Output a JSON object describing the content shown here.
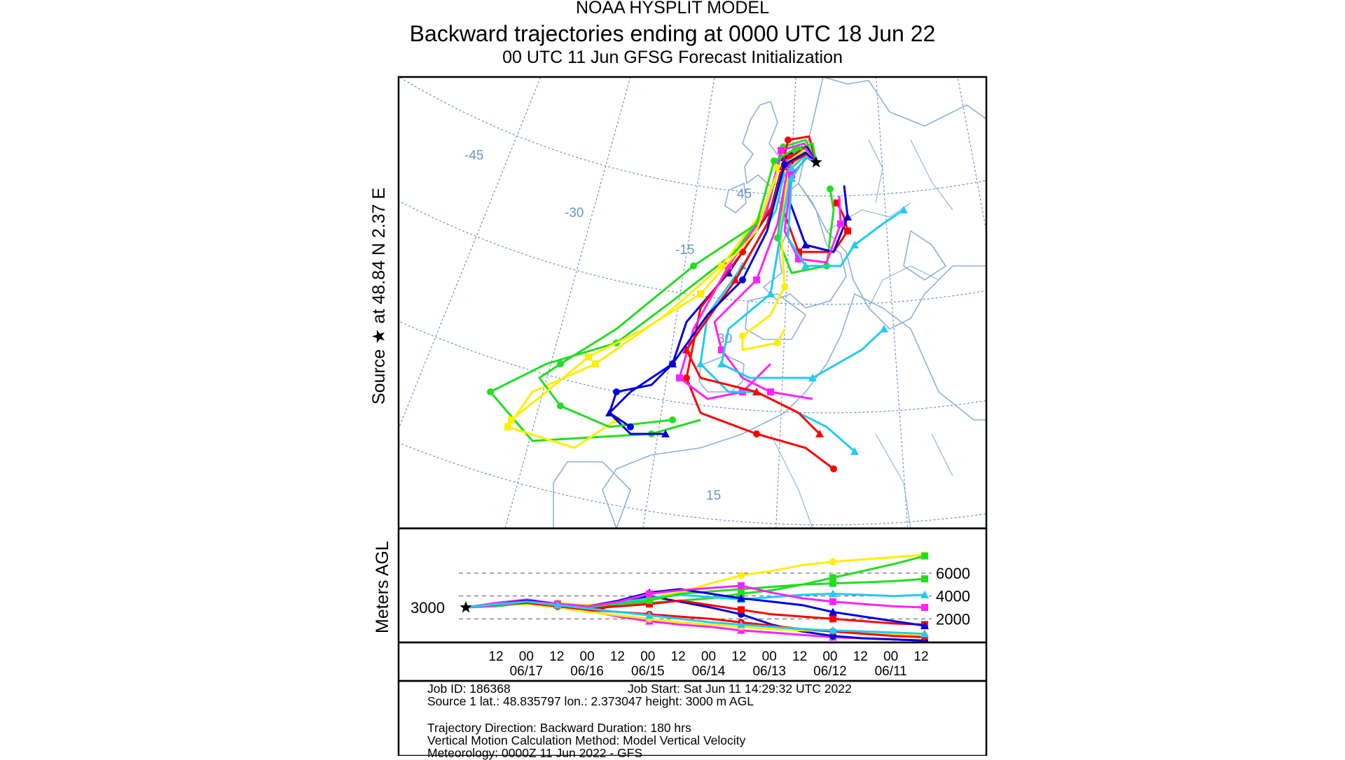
{
  "header": {
    "line1": "NOAA HYSPLIT MODEL",
    "line2": "Backward trajectories ending at 0000 UTC 18 Jun 22",
    "line3": "00 UTC 11 Jun    GFSG  Forecast Initialization"
  },
  "map": {
    "source_label": "Source ★ at   48.84 N    2.37 E",
    "grid_labels": [
      "-45",
      "-30",
      "-15",
      "45",
      "30",
      "15"
    ],
    "colors": {
      "red": "#ff0000",
      "blue": "#0000dd",
      "green": "#22dd22",
      "cyan": "#22ccee",
      "magenta": "#ff22ff",
      "yellow": "#ffee00",
      "grid": "#6b95c4",
      "coast": "#8fb0d8"
    }
  },
  "chart_data": {
    "type": "line",
    "title": "Backward trajectories ending at 0000 UTC 18 Jun 22",
    "ylabel": "Meters AGL",
    "y_ticks": [
      "2000",
      "4000",
      "6000"
    ],
    "source_height_label": "3000",
    "x_tick_hours": [
      "12",
      "00",
      "12",
      "00",
      "12",
      "00",
      "12",
      "00",
      "12",
      "00",
      "12",
      "00",
      "12",
      "00",
      "12"
    ],
    "x_tick_dates": [
      "06/17",
      "06/16",
      "06/15",
      "06/14",
      "06/13",
      "06/12",
      "06/11"
    ],
    "ylim": [
      0,
      9000
    ],
    "series": [
      {
        "color": "#ffee00",
        "values": [
          3000,
          3300,
          3600,
          3400,
          3200,
          3500,
          3900,
          4300,
          5100,
          5800,
          6200,
          6700,
          7000,
          7200,
          7400,
          7600
        ]
      },
      {
        "color": "#22dd22",
        "values": [
          3000,
          3200,
          3500,
          3200,
          3000,
          3300,
          3400,
          3600,
          3800,
          4200,
          4500,
          5000,
          5600,
          6200,
          6800,
          7500
        ]
      },
      {
        "color": "#ff22ff",
        "values": [
          3000,
          3400,
          3700,
          3300,
          2700,
          2200,
          1800,
          1500,
          1300,
          1000,
          800,
          600,
          400,
          300,
          200,
          100
        ]
      },
      {
        "color": "#0000dd",
        "values": [
          3000,
          3200,
          3500,
          3100,
          2600,
          3300,
          4000,
          3500,
          3000,
          2400,
          1500,
          900,
          500,
          300,
          200,
          100
        ]
      },
      {
        "color": "#ff0000",
        "values": [
          3000,
          3300,
          3500,
          3200,
          2900,
          3100,
          3300,
          3600,
          3200,
          2800,
          2400,
          2200,
          2000,
          1800,
          1600,
          1500
        ]
      },
      {
        "color": "#22ccee",
        "values": [
          3000,
          3300,
          3600,
          3300,
          3000,
          3400,
          3800,
          4100,
          3900,
          3700,
          3900,
          4100,
          4200,
          4100,
          4000,
          4100
        ]
      },
      {
        "color": "#ffee00",
        "values": [
          3000,
          3200,
          3300,
          3000,
          2600,
          2300,
          2000,
          1700,
          1500,
          1300,
          1100,
          1000,
          900,
          800,
          700,
          600
        ]
      },
      {
        "color": "#22dd22",
        "values": [
          3000,
          3100,
          3400,
          3200,
          3100,
          3300,
          3600,
          4200,
          4400,
          4600,
          4800,
          5000,
          5100,
          5200,
          5300,
          5500
        ]
      },
      {
        "color": "#0000dd",
        "values": [
          3000,
          3300,
          3600,
          3300,
          3100,
          3600,
          4300,
          4600,
          4200,
          3800,
          3500,
          3200,
          2600,
          2200,
          1800,
          1400
        ]
      },
      {
        "color": "#ff0000",
        "values": [
          3000,
          3300,
          3400,
          3100,
          2800,
          2600,
          2400,
          2200,
          2000,
          1700,
          1400,
          1100,
          900,
          700,
          500,
          400
        ]
      },
      {
        "color": "#ff22ff",
        "values": [
          3000,
          3200,
          3500,
          3300,
          3100,
          3500,
          4200,
          4500,
          4700,
          4900,
          4300,
          3800,
          3500,
          3300,
          3100,
          3000
        ]
      },
      {
        "color": "#22ccee",
        "values": [
          3000,
          3300,
          3500,
          3200,
          2900,
          2600,
          2300,
          2000,
          1700,
          1500,
          1300,
          1100,
          1000,
          900,
          800,
          700
        ]
      }
    ]
  },
  "info": {
    "job_id": "Job ID: 186368",
    "job_start": "Job Start: Sat Jun 11 14:29:32 UTC 2022",
    "source": "Source 1      lat.: 48.835797    lon.: 2.373047      height: 3000 m AGL",
    "direction": "Trajectory Direction: Backward       Duration: 180 hrs",
    "vertical": "Vertical Motion Calculation Method:       Model Vertical Velocity",
    "meteorology": "Meteorology: 0000Z 11 Jun 2022 - GFS"
  }
}
